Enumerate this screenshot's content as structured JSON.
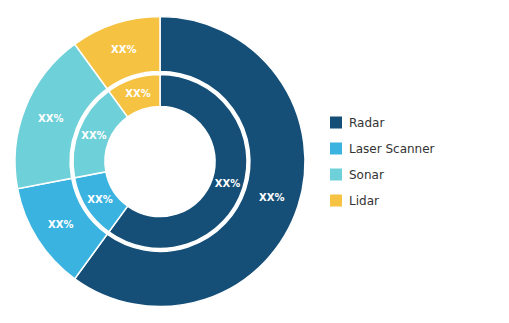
{
  "chart_data": {
    "type": "pie",
    "categories": [
      "Radar",
      "Laser Scanner",
      "Sonar",
      "Lidar"
    ],
    "colors": [
      "#154f78",
      "#3bb3e0",
      "#6ed0d8",
      "#f5c242"
    ],
    "series": [
      {
        "values": [
          60,
          12,
          18,
          10
        ],
        "value_labels": [
          "XX%",
          "XX%",
          "XX%",
          "XX%"
        ]
      },
      {
        "values": [
          60,
          12,
          18,
          10
        ],
        "value_labels": [
          "XX%",
          "XX%",
          "XX%",
          "XX%"
        ]
      }
    ],
    "data_labels": true,
    "legend": "right"
  }
}
